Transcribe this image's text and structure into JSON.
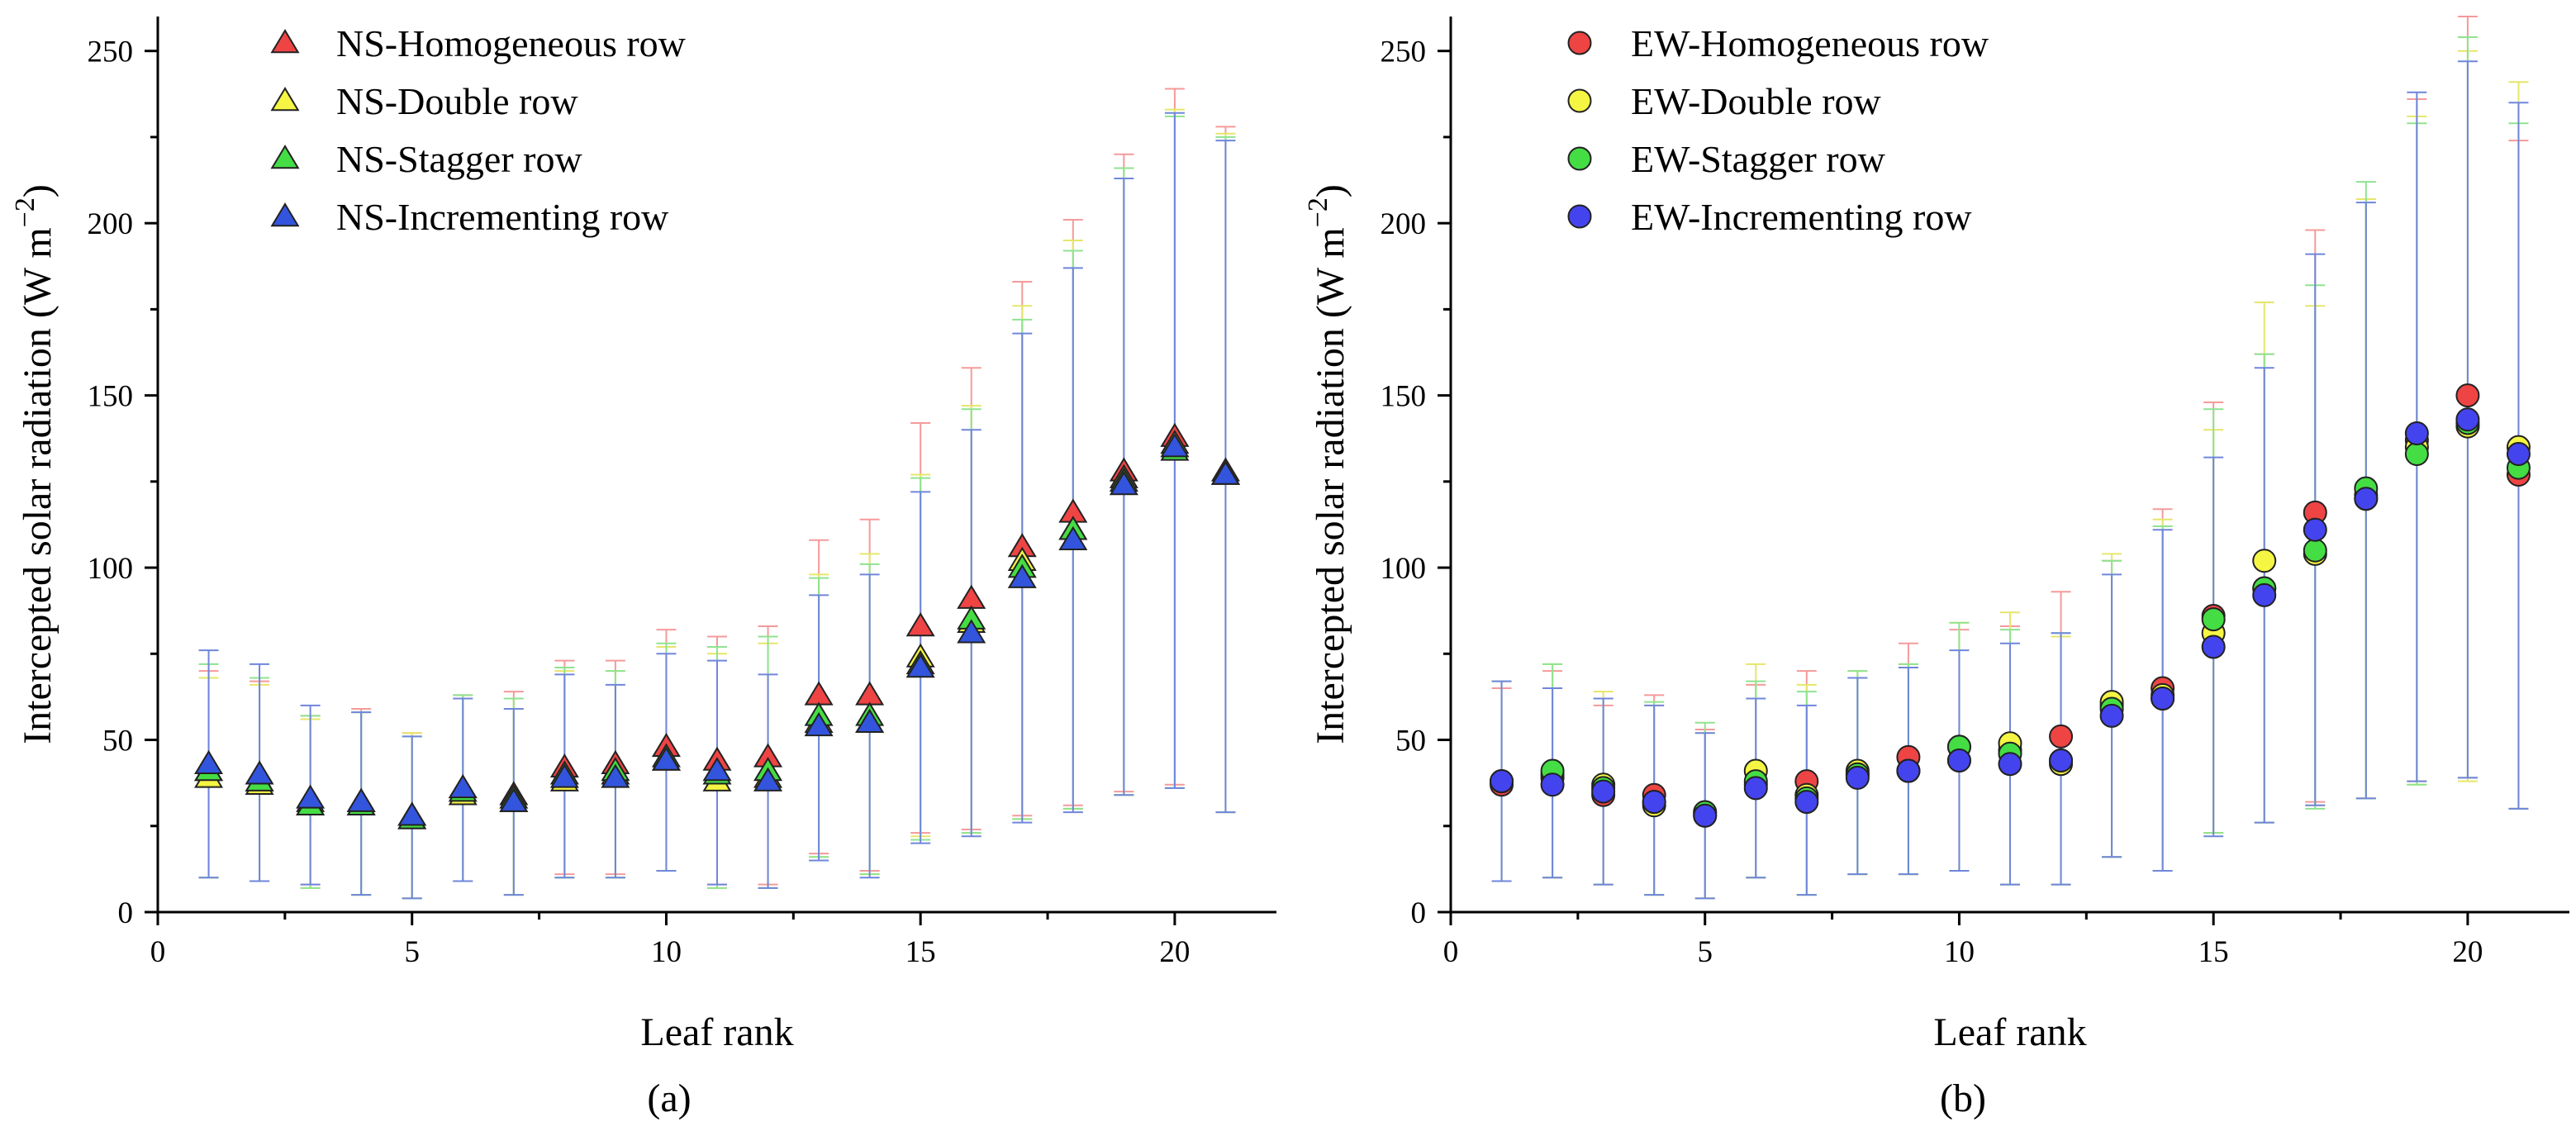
{
  "chart_data": [
    {
      "type": "scatter",
      "panel_label": "(a)",
      "xlabel": "Leaf rank",
      "ylabel": "Intercepted solar radiation (W m⁻²)",
      "ylabel_parts": {
        "main": "Intercepted solar radiation (W m",
        "sup": "−2",
        "close": ")"
      },
      "xlim": [
        0,
        22
      ],
      "ylim": [
        0,
        260
      ],
      "xticks": [
        0,
        5,
        10,
        15,
        20
      ],
      "yticks": [
        0,
        50,
        100,
        150,
        200,
        250
      ],
      "legend_position": "top-left",
      "marker": "triangle",
      "x": [
        1,
        2,
        3,
        4,
        5,
        6,
        7,
        8,
        9,
        10,
        11,
        12,
        13,
        14,
        15,
        16,
        17,
        18,
        19,
        20,
        21
      ],
      "series": [
        {
          "name": "NS-Homogeneous row",
          "color": "#ee4444",
          "values": [
            41,
            38,
            32,
            32,
            28,
            36,
            34,
            42,
            43,
            48,
            44,
            45,
            63,
            63,
            83,
            91,
            106,
            116,
            128,
            138,
            128
          ],
          "err_low": [
            10,
            9,
            8,
            5,
            4,
            9,
            5,
            11,
            11,
            12,
            8,
            8,
            17,
            12,
            23,
            24,
            28,
            31,
            35,
            37,
            29
          ],
          "err_high": [
            70,
            67,
            57,
            59,
            52,
            63,
            64,
            73,
            73,
            82,
            80,
            83,
            108,
            114,
            142,
            158,
            183,
            201,
            220,
            239,
            228
          ]
        },
        {
          "name": "NS-Double row",
          "color": "#f5f544",
          "values": [
            39,
            37,
            31,
            31,
            27,
            34,
            32,
            38,
            40,
            44,
            38,
            39,
            55,
            55,
            74,
            84,
            102,
            111,
            126,
            136,
            127
          ],
          "err_low": [
            10,
            9,
            7,
            5,
            4,
            9,
            5,
            10,
            10,
            12,
            7,
            7,
            16,
            11,
            22,
            23,
            27,
            30,
            34,
            36,
            29
          ],
          "err_high": [
            68,
            66,
            56,
            58,
            52,
            62,
            62,
            70,
            70,
            77,
            75,
            78,
            98,
            104,
            127,
            147,
            176,
            195,
            216,
            233,
            226
          ]
        },
        {
          "name": "NS-Stagger row",
          "color": "#44dd44",
          "values": [
            41,
            38,
            31,
            31,
            27,
            35,
            33,
            40,
            41,
            45,
            40,
            41,
            57,
            57,
            72,
            85,
            100,
            111,
            125,
            134,
            127
          ],
          "err_low": [
            10,
            9,
            7,
            5,
            4,
            9,
            5,
            10,
            10,
            12,
            7,
            7,
            16,
            11,
            21,
            23,
            27,
            30,
            34,
            36,
            29
          ],
          "err_high": [
            72,
            68,
            57,
            58,
            51,
            63,
            62,
            71,
            70,
            78,
            77,
            80,
            97,
            101,
            126,
            146,
            172,
            192,
            216,
            231,
            225
          ]
        },
        {
          "name": "NS-Incrementing row",
          "color": "#3355dd",
          "values": [
            43,
            40,
            33,
            32,
            28,
            36,
            32,
            39,
            39,
            44,
            41,
            38,
            54,
            55,
            71,
            81,
            97,
            108,
            124,
            135,
            127
          ],
          "err_low": [
            10,
            9,
            8,
            5,
            4,
            9,
            5,
            10,
            10,
            12,
            8,
            7,
            15,
            10,
            20,
            22,
            26,
            29,
            34,
            36,
            29
          ],
          "err_high": [
            76,
            72,
            60,
            58,
            51,
            62,
            59,
            69,
            66,
            75,
            73,
            69,
            92,
            98,
            122,
            140,
            168,
            187,
            213,
            232,
            224
          ]
        }
      ]
    },
    {
      "type": "scatter",
      "panel_label": "(b)",
      "xlabel": "Leaf rank",
      "ylabel": "Intercepted solar radiation (W m⁻²)",
      "ylabel_parts": {
        "main": "Intercepted solar radiation (W m",
        "sup": "−2",
        "close": ")"
      },
      "xlim": [
        0,
        22
      ],
      "ylim": [
        0,
        260
      ],
      "xticks": [
        0,
        5,
        10,
        15,
        20
      ],
      "yticks": [
        0,
        50,
        100,
        150,
        200,
        250
      ],
      "legend_position": "top-left",
      "marker": "circle",
      "x": [
        1,
        2,
        3,
        4,
        5,
        6,
        7,
        8,
        9,
        10,
        11,
        12,
        13,
        14,
        15,
        16,
        17,
        18,
        19,
        20,
        21
      ],
      "series": [
        {
          "name": "EW-Homogeneous row",
          "color": "#ee4444",
          "values": [
            37,
            39,
            34,
            34,
            29,
            37,
            38,
            40,
            45,
            48,
            47,
            51,
            60,
            65,
            86,
            94,
            116,
            121,
            137,
            150,
            127
          ],
          "err_low": [
            9,
            10,
            8,
            5,
            4,
            10,
            5,
            11,
            11,
            12,
            8,
            8,
            16,
            12,
            23,
            26,
            32,
            33,
            38,
            39,
            30
          ],
          "err_high": [
            65,
            70,
            60,
            63,
            53,
            66,
            70,
            68,
            78,
            82,
            83,
            93,
            102,
            117,
            148,
            162,
            198,
            207,
            236,
            260,
            224
          ]
        },
        {
          "name": "EW-Double row",
          "color": "#f5f544",
          "values": [
            38,
            40,
            37,
            31,
            28,
            41,
            34,
            41,
            41,
            44,
            49,
            43,
            61,
            63,
            81,
            102,
            104,
            120,
            135,
            141,
            135
          ],
          "err_low": [
            9,
            10,
            8,
            5,
            4,
            10,
            5,
            11,
            11,
            12,
            8,
            8,
            16,
            12,
            23,
            26,
            31,
            33,
            37,
            38,
            30
          ],
          "err_high": [
            67,
            72,
            64,
            60,
            52,
            72,
            66,
            70,
            72,
            84,
            87,
            80,
            104,
            114,
            140,
            177,
            176,
            207,
            231,
            250,
            241
          ]
        },
        {
          "name": "EW-Stagger row",
          "color": "#44dd44",
          "values": [
            38,
            41,
            36,
            32,
            29,
            38,
            33,
            40,
            41,
            48,
            46,
            44,
            59,
            62,
            85,
            94,
            105,
            123,
            133,
            142,
            129
          ],
          "err_low": [
            9,
            10,
            8,
            5,
            4,
            10,
            5,
            11,
            11,
            12,
            8,
            8,
            16,
            12,
            23,
            26,
            30,
            33,
            37,
            39,
            30
          ],
          "err_high": [
            67,
            72,
            62,
            61,
            55,
            67,
            64,
            70,
            72,
            84,
            82,
            81,
            102,
            112,
            146,
            162,
            182,
            212,
            229,
            254,
            229
          ]
        },
        {
          "name": "EW-Incrementing row",
          "color": "#4444ee",
          "values": [
            38,
            37,
            35,
            32,
            28,
            36,
            32,
            39,
            41,
            44,
            43,
            44,
            57,
            62,
            77,
            92,
            111,
            120,
            139,
            143,
            133
          ],
          "err_low": [
            9,
            10,
            8,
            5,
            4,
            10,
            5,
            11,
            11,
            12,
            8,
            8,
            16,
            12,
            22,
            26,
            31,
            33,
            38,
            39,
            30
          ],
          "err_high": [
            67,
            65,
            62,
            60,
            52,
            62,
            60,
            68,
            71,
            76,
            78,
            81,
            98,
            111,
            132,
            158,
            191,
            206,
            238,
            247,
            235
          ]
        }
      ]
    }
  ]
}
